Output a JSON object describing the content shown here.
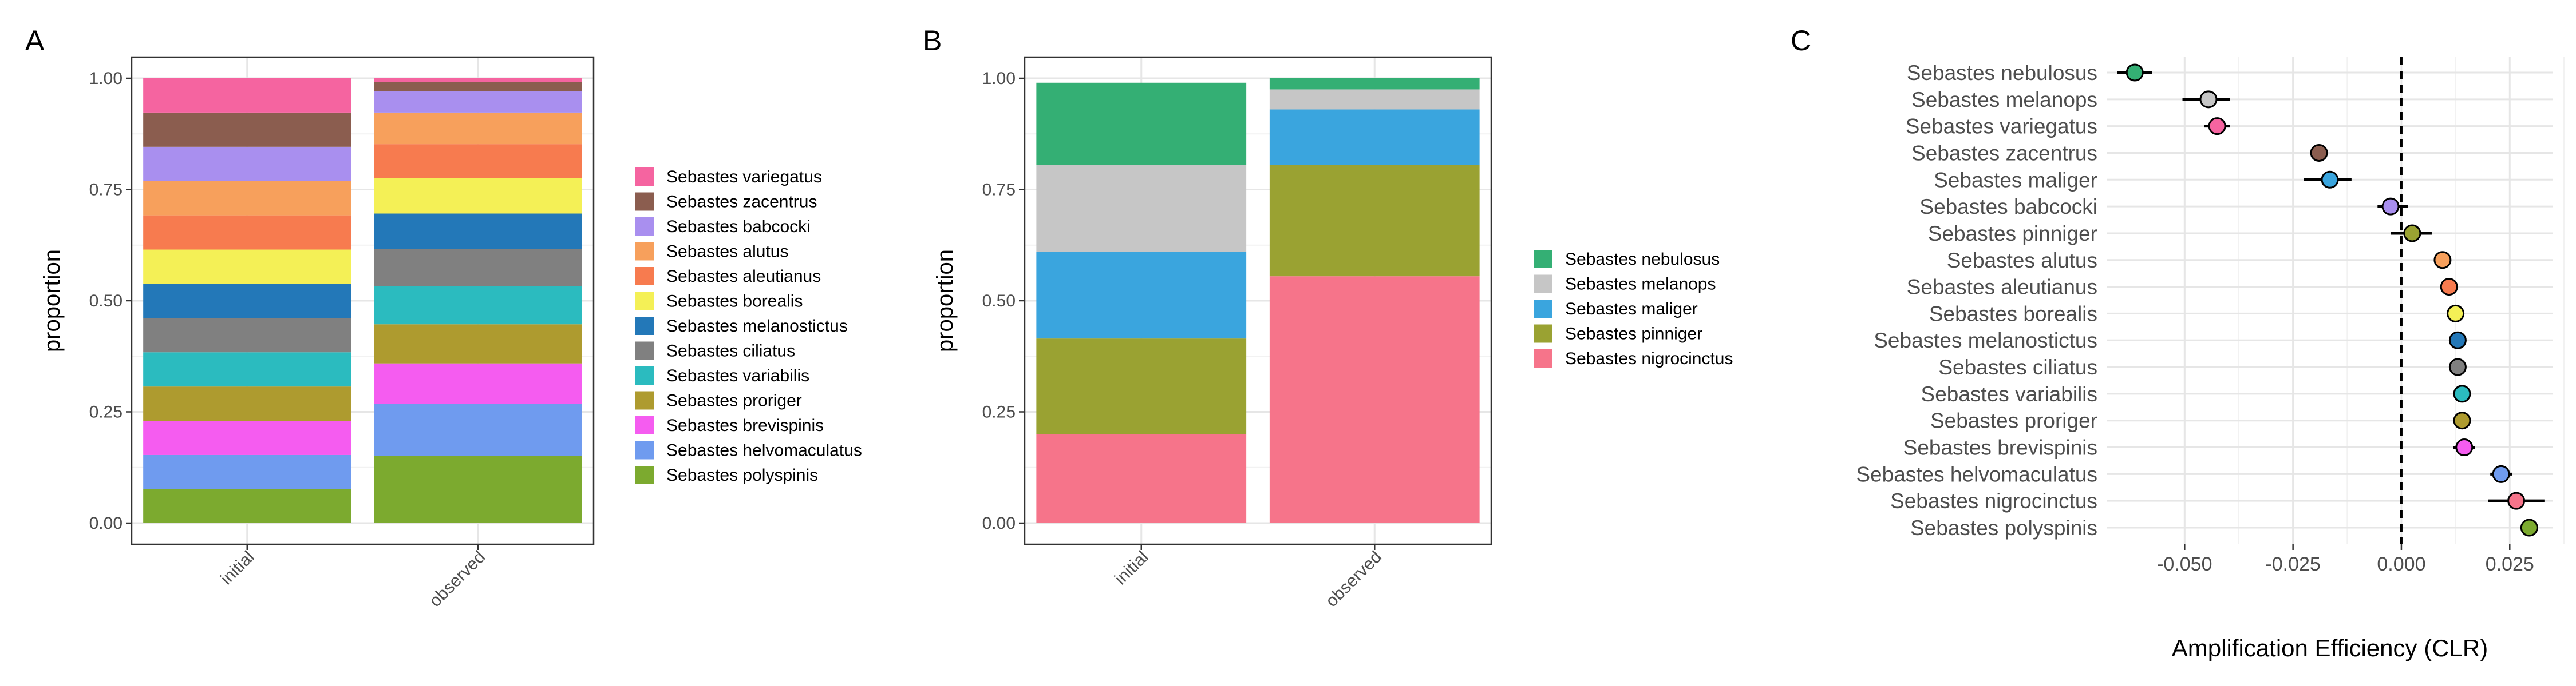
{
  "chart_data": [
    {
      "panel": "A",
      "type": "bar",
      "stacked": true,
      "ylabel": "proportion",
      "ylim": [
        0,
        1
      ],
      "yticks": [
        "0.00",
        "0.25",
        "0.50",
        "0.75",
        "1.00"
      ],
      "categories": [
        "initial",
        "observed"
      ],
      "legend_position": "right",
      "series": [
        {
          "name": "Sebastes variegatus",
          "color": "#F564A0",
          "values": [
            0.077,
            0.008
          ]
        },
        {
          "name": "Sebastes zacentrus",
          "color": "#8B5D4F",
          "values": [
            0.077,
            0.021
          ]
        },
        {
          "name": "Sebastes babcocki",
          "color": "#A98FEF",
          "values": [
            0.077,
            0.048
          ]
        },
        {
          "name": "Sebastes alutus",
          "color": "#F7A05C",
          "values": [
            0.077,
            0.071
          ]
        },
        {
          "name": "Sebastes aleutianus",
          "color": "#F77B4F",
          "values": [
            0.077,
            0.076
          ]
        },
        {
          "name": "Sebastes borealis",
          "color": "#F4F056",
          "values": [
            0.077,
            0.08
          ]
        },
        {
          "name": "Sebastes melanostictus",
          "color": "#2378B8",
          "values": [
            0.077,
            0.08
          ]
        },
        {
          "name": "Sebastes ciliatus",
          "color": "#808080",
          "values": [
            0.077,
            0.083
          ]
        },
        {
          "name": "Sebastes variabilis",
          "color": "#2BBBBF",
          "values": [
            0.077,
            0.086
          ]
        },
        {
          "name": "Sebastes proriger",
          "color": "#AE9B2F",
          "values": [
            0.077,
            0.088
          ]
        },
        {
          "name": "Sebastes brevispinis",
          "color": "#F55CF0",
          "values": [
            0.077,
            0.091
          ]
        },
        {
          "name": "Sebastes helvomaculatus",
          "color": "#6F9BEF",
          "values": [
            0.077,
            0.117
          ]
        },
        {
          "name": "Sebastes polyspinis",
          "color": "#7CAA2F",
          "values": [
            0.076,
            0.151
          ]
        }
      ]
    },
    {
      "panel": "B",
      "type": "bar",
      "stacked": true,
      "ylabel": "proportion",
      "ylim": [
        0,
        1
      ],
      "yticks": [
        "0.00",
        "0.25",
        "0.50",
        "0.75",
        "1.00"
      ],
      "categories": [
        "initial",
        "observed"
      ],
      "legend_position": "right",
      "series": [
        {
          "name": "Sebastes nebulosus",
          "color": "#34AF74",
          "values": [
            0.185,
            0.025
          ]
        },
        {
          "name": "Sebastes melanops",
          "color": "#C6C6C6",
          "values": [
            0.195,
            0.045
          ]
        },
        {
          "name": "Sebastes maliger",
          "color": "#3AA5DE",
          "values": [
            0.195,
            0.125
          ]
        },
        {
          "name": "Sebastes pinniger",
          "color": "#9AA232",
          "values": [
            0.215,
            0.25
          ]
        },
        {
          "name": "Sebastes nigrocinctus",
          "color": "#F6748A",
          "values": [
            0.2,
            0.555
          ]
        }
      ]
    },
    {
      "panel": "C",
      "type": "scatter",
      "xlabel": "Amplification Efficiency (CLR)",
      "xlim": [
        -0.068,
        0.035
      ],
      "xticks": [
        -0.05,
        -0.025,
        0,
        0.025
      ],
      "xtick_labels": [
        "-0.050",
        "-0.025",
        "0.000",
        "0.025"
      ],
      "reference_line": 0,
      "points": [
        {
          "name": "Sebastes nebulosus",
          "x": -0.0615,
          "lo": -0.0655,
          "hi": -0.0575,
          "color": "#34AF74"
        },
        {
          "name": "Sebastes melanops",
          "x": -0.0445,
          "lo": -0.0505,
          "hi": -0.0395,
          "color": "#C6C6C6"
        },
        {
          "name": "Sebastes variegatus",
          "x": -0.0425,
          "lo": -0.0455,
          "hi": -0.0395,
          "color": "#F564A0"
        },
        {
          "name": "Sebastes zacentrus",
          "x": -0.019,
          "lo": -0.021,
          "hi": -0.017,
          "color": "#8B5D4F"
        },
        {
          "name": "Sebastes maliger",
          "x": -0.0165,
          "lo": -0.0225,
          "hi": -0.0115,
          "color": "#3AA5DE"
        },
        {
          "name": "Sebastes babcocki",
          "x": -0.0025,
          "lo": -0.0055,
          "hi": 0.0015,
          "color": "#A98FEF"
        },
        {
          "name": "Sebastes pinniger",
          "x": 0.0025,
          "lo": -0.0025,
          "hi": 0.007,
          "color": "#9AA232"
        },
        {
          "name": "Sebastes alutus",
          "x": 0.0095,
          "lo": 0.008,
          "hi": 0.011,
          "color": "#F7A05C"
        },
        {
          "name": "Sebastes aleutianus",
          "x": 0.011,
          "lo": 0.0095,
          "hi": 0.0125,
          "color": "#F77B4F"
        },
        {
          "name": "Sebastes borealis",
          "x": 0.0125,
          "lo": 0.011,
          "hi": 0.014,
          "color": "#F4F056"
        },
        {
          "name": "Sebastes melanostictus",
          "x": 0.013,
          "lo": 0.0115,
          "hi": 0.0145,
          "color": "#2378B8"
        },
        {
          "name": "Sebastes ciliatus",
          "x": 0.013,
          "lo": 0.0115,
          "hi": 0.0145,
          "color": "#808080"
        },
        {
          "name": "Sebastes variabilis",
          "x": 0.014,
          "lo": 0.0125,
          "hi": 0.0155,
          "color": "#2BBBBF"
        },
        {
          "name": "Sebastes proriger",
          "x": 0.014,
          "lo": 0.0125,
          "hi": 0.0155,
          "color": "#AE9B2F"
        },
        {
          "name": "Sebastes brevispinis",
          "x": 0.0145,
          "lo": 0.012,
          "hi": 0.017,
          "color": "#F55CF0"
        },
        {
          "name": "Sebastes helvomaculatus",
          "x": 0.023,
          "lo": 0.0205,
          "hi": 0.0255,
          "color": "#6F9BEF"
        },
        {
          "name": "Sebastes nigrocinctus",
          "x": 0.0265,
          "lo": 0.02,
          "hi": 0.033,
          "color": "#F6748A"
        },
        {
          "name": "Sebastes polyspinis",
          "x": 0.0295,
          "lo": 0.0285,
          "hi": 0.0305,
          "color": "#7CAA2F"
        }
      ]
    }
  ]
}
